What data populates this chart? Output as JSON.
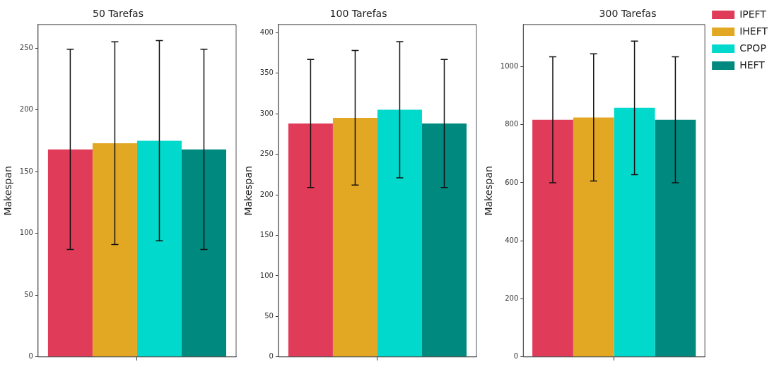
{
  "chart_data": [
    {
      "type": "bar",
      "title": "50 Tarefas",
      "ylabel": "Makespan",
      "categories": [
        null
      ],
      "ylim": [
        0,
        269
      ],
      "yticks": [
        0,
        50,
        100,
        150,
        200,
        250
      ],
      "grid": false,
      "legend": false,
      "series": [
        {
          "color": "#e03c5a",
          "values": [
            168
          ],
          "errors": [
            81
          ]
        },
        {
          "color": "#e2a823",
          "values": [
            173
          ],
          "errors": [
            82
          ]
        },
        {
          "color": "#00d9cb",
          "values": [
            175
          ],
          "errors": [
            81
          ]
        },
        {
          "color": "#00897f",
          "values": [
            168
          ],
          "errors": [
            81
          ]
        }
      ]
    },
    {
      "type": "bar",
      "title": "100 Tarefas",
      "ylabel": "Makespan",
      "categories": [
        null
      ],
      "ylim": [
        0,
        410
      ],
      "yticks": [
        0,
        50,
        100,
        150,
        200,
        250,
        300,
        350,
        400
      ],
      "grid": false,
      "legend": false,
      "series": [
        {
          "color": "#e03c5a",
          "values": [
            288
          ],
          "errors": [
            79
          ]
        },
        {
          "color": "#e2a823",
          "values": [
            295
          ],
          "errors": [
            83
          ]
        },
        {
          "color": "#00d9cb",
          "values": [
            305
          ],
          "errors": [
            84
          ]
        },
        {
          "color": "#00897f",
          "values": [
            288
          ],
          "errors": [
            79
          ]
        }
      ]
    },
    {
      "type": "bar",
      "title": "300 Tarefas",
      "ylabel": "Makespan",
      "categories": [
        null
      ],
      "ylim": [
        0,
        1145
      ],
      "yticks": [
        0,
        200,
        400,
        600,
        800,
        1000
      ],
      "grid": false,
      "legend": "top right",
      "series": [
        {
          "name": "IPEFT",
          "color": "#e03c5a",
          "values": [
            817
          ],
          "errors": [
            217
          ]
        },
        {
          "name": "IHEFT",
          "color": "#e2a823",
          "values": [
            825
          ],
          "errors": [
            219
          ]
        },
        {
          "name": "CPOP",
          "color": "#00d9cb",
          "values": [
            858
          ],
          "errors": [
            230
          ]
        },
        {
          "name": "HEFT",
          "color": "#00897f",
          "values": [
            817
          ],
          "errors": [
            217
          ]
        }
      ]
    }
  ]
}
